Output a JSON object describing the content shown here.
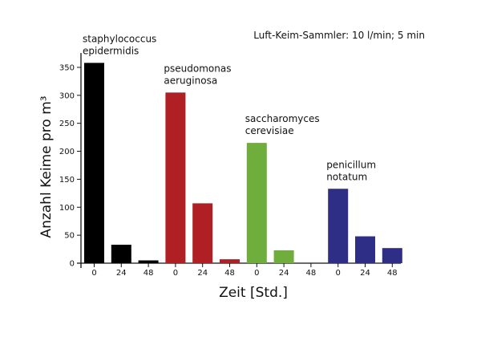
{
  "chart_data": {
    "type": "bar",
    "note": "Luft-Keim-Sammler: 10 l/min; 5 min",
    "xlabel": "Zeit [Std.]",
    "ylabel": "Anzahl Keime pro m³",
    "ylim": [
      0,
      370
    ],
    "yticks": [
      0,
      50,
      100,
      150,
      200,
      250,
      300,
      350
    ],
    "grid": false,
    "groups": [
      {
        "label_lines": [
          "staphylococcus",
          "epidermidis"
        ],
        "color": "#000000",
        "categories": [
          "0",
          "24",
          "48"
        ],
        "values": [
          358,
          33,
          5
        ]
      },
      {
        "label_lines": [
          "pseudomonas",
          "aeruginosa"
        ],
        "color": "#b01f24",
        "categories": [
          "0",
          "24",
          "48"
        ],
        "values": [
          305,
          107,
          7
        ]
      },
      {
        "label_lines": [
          "saccharomyces",
          "cerevisiae"
        ],
        "color": "#6fad3c",
        "categories": [
          "0",
          "24",
          "48"
        ],
        "values": [
          215,
          23,
          0
        ]
      },
      {
        "label_lines": [
          "penicillum",
          "notatum"
        ],
        "color": "#2e2e87",
        "categories": [
          "0",
          "24",
          "48"
        ],
        "values": [
          133,
          48,
          27
        ]
      }
    ]
  }
}
